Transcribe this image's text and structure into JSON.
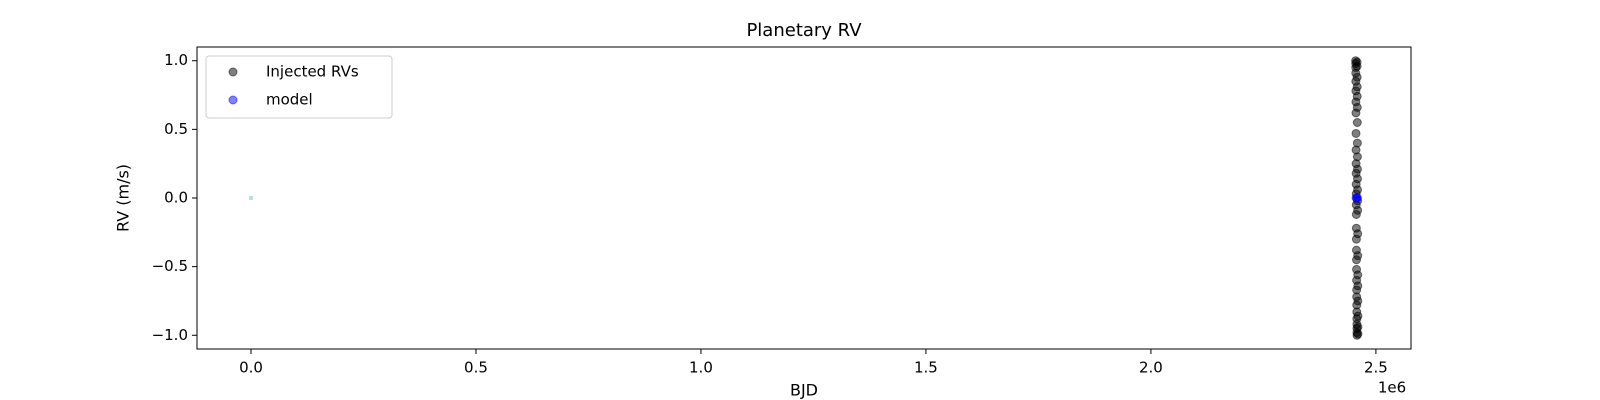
{
  "chart_data": {
    "type": "scatter",
    "title": "Planetary RV",
    "xlabel": "BJD",
    "ylabel": "RV (m/s)",
    "x_offset_label": "1e6",
    "xlim": [
      -120000,
      2578000
    ],
    "xticks": [
      {
        "value": 0,
        "label": "0.0"
      },
      {
        "value": 500000,
        "label": "0.5"
      },
      {
        "value": 1000000,
        "label": "1.0"
      },
      {
        "value": 1500000,
        "label": "1.5"
      },
      {
        "value": 2000000,
        "label": "2.0"
      },
      {
        "value": 2500000,
        "label": "2.5"
      }
    ],
    "ylim": [
      -1.1,
      1.1
    ],
    "yticks": [
      {
        "value": -1,
        "label": "−1.0"
      },
      {
        "value": -0.5,
        "label": "−0.5"
      },
      {
        "value": 0,
        "label": "0.0"
      },
      {
        "value": 0.5,
        "label": "0.5"
      },
      {
        "value": 1,
        "label": "1.0"
      }
    ],
    "legend": "upper left",
    "series": [
      {
        "name": "Injected RVs",
        "color": "#000000",
        "alpha": 0.5,
        "x": [
          2455000,
          2455100,
          2455200,
          2455300,
          2455400,
          2455500,
          2455600,
          2455700,
          2455800,
          2455900,
          2456000,
          2456100,
          2456200,
          2456300,
          2456400,
          2456500,
          2456600,
          2456700,
          2456800,
          2456900,
          2457000,
          2457100,
          2457200,
          2457300,
          2457400,
          2457500,
          2457600,
          2457700,
          2457800,
          2457900,
          2458000,
          2458100,
          2458200,
          2458300,
          2458400,
          2458500,
          2458600,
          2458700,
          2458800,
          2458900,
          2459000,
          2459100,
          2459200,
          2459300,
          2459400,
          2459500,
          2459600,
          2459700,
          2459800,
          2459900,
          2460000,
          2460100,
          2460200
        ],
        "values": [
          1.0,
          0.98,
          0.95,
          0.91,
          0.85,
          0.78,
          0.7,
          0.62,
          0.47,
          0.35,
          0.25,
          0.18,
          0.1,
          0.03,
          -0.05,
          -0.12,
          -0.22,
          -0.3,
          -0.38,
          -0.45,
          -0.52,
          -0.6,
          -0.67,
          -0.72,
          -0.78,
          -0.83,
          -0.88,
          -0.92,
          -0.95,
          -0.98,
          -1.0,
          0.99,
          0.96,
          0.88,
          0.81,
          0.74,
          0.66,
          0.55,
          0.4,
          0.3,
          0.21,
          0.14,
          0.06,
          -0.02,
          -0.09,
          -0.26,
          -0.42,
          -0.56,
          -0.64,
          -0.75,
          -0.86,
          -0.94,
          -0.99
        ]
      },
      {
        "name": "model",
        "color": "#0000ff",
        "alpha": 0.5,
        "x": [
          2456000,
          2457500,
          2459000
        ],
        "values": [
          0,
          0,
          0
        ]
      },
      {
        "color": "#a8d8d0",
        "alpha": 0.8,
        "marker": "square",
        "x": [
          0
        ],
        "values": [
          0
        ]
      }
    ]
  }
}
